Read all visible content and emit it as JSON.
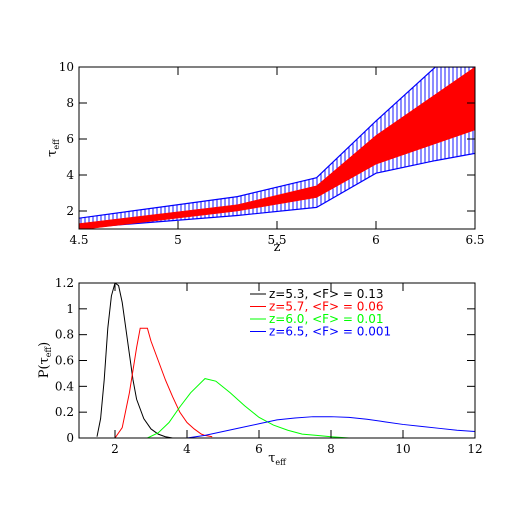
{
  "chart_data": [
    {
      "type": "area",
      "xlabel": "z",
      "ylabel": "τeff",
      "ylabel_main": "τ",
      "ylabel_sub": "eff",
      "xlim": [
        4.5,
        6.5
      ],
      "ylim": [
        1,
        10
      ],
      "xticks": [
        4.5,
        5,
        5.5,
        6,
        6.5
      ],
      "xtick_labels": [
        "4.5",
        "5",
        "5.5",
        "6",
        "6.5"
      ],
      "yticks": [
        2,
        4,
        6,
        8,
        10
      ],
      "ytick_labels": [
        "2",
        "4",
        "6",
        "8",
        "10"
      ],
      "series": [
        {
          "style": "hatched-band",
          "color": "#0000ff",
          "x": [
            4.5,
            5.3,
            5.7,
            6.0,
            6.3,
            6.5
          ],
          "y_low": [
            1.05,
            1.75,
            2.2,
            4.1,
            4.8,
            5.2
          ],
          "y_high": [
            1.6,
            2.8,
            3.85,
            7.0,
            10.0,
            10.0
          ]
        },
        {
          "style": "filled-band",
          "color": "#ff0000",
          "x": [
            4.5,
            5.3,
            5.7,
            6.0,
            6.5
          ],
          "y_low": [
            0.95,
            2.0,
            2.75,
            4.6,
            6.5
          ],
          "y_high": [
            1.3,
            2.35,
            3.4,
            6.2,
            10.0
          ]
        }
      ]
    },
    {
      "type": "line",
      "xlabel": "τeff",
      "xlabel_main": "τ",
      "xlabel_sub": "eff",
      "ylabel": "P(τeff)",
      "ylabel_main": "P(τ",
      "ylabel_sub": "eff",
      "ylabel_close": ")",
      "xlim": [
        1,
        12
      ],
      "ylim": [
        0,
        1.2
      ],
      "xticks": [
        2,
        4,
        6,
        8,
        10,
        12
      ],
      "xtick_labels": [
        "2",
        "4",
        "6",
        "8",
        "10",
        "12"
      ],
      "yticks": [
        0,
        0.2,
        0.4,
        0.6,
        0.8,
        1,
        1.2
      ],
      "ytick_labels": [
        "0",
        "0.2",
        "0.4",
        "0.6",
        "0.8",
        "1",
        "1.2"
      ],
      "legend_position": "top-right",
      "series": [
        {
          "name": "z=5.3, <F> = 0.13",
          "color": "#000000",
          "x": [
            1.5,
            1.6,
            1.7,
            1.8,
            1.9,
            2.0,
            2.1,
            2.2,
            2.3,
            2.4,
            2.5,
            2.6,
            2.8,
            3.0,
            3.2,
            3.4,
            3.6
          ],
          "y": [
            0.01,
            0.15,
            0.45,
            0.85,
            1.1,
            1.2,
            1.18,
            1.05,
            0.85,
            0.65,
            0.45,
            0.3,
            0.15,
            0.07,
            0.03,
            0.01,
            0.0
          ]
        },
        {
          "name": "z=5.7, <F> = 0.06",
          "color": "#ff0000",
          "x": [
            2.0,
            2.2,
            2.4,
            2.6,
            2.7,
            2.9,
            3.0,
            3.2,
            3.4,
            3.6,
            3.8,
            4.0,
            4.2,
            4.4,
            4.5,
            4.7
          ],
          "y": [
            0.0,
            0.08,
            0.35,
            0.7,
            0.85,
            0.85,
            0.75,
            0.6,
            0.45,
            0.32,
            0.2,
            0.12,
            0.07,
            0.03,
            0.02,
            0.01
          ]
        },
        {
          "name": "z=6.0, <F> = 0.01",
          "color": "#00ff00",
          "x": [
            2.9,
            3.2,
            3.5,
            3.8,
            4.1,
            4.5,
            4.8,
            5.2,
            5.6,
            6.0,
            6.4,
            6.8,
            7.2,
            7.6,
            8.0,
            8.5
          ],
          "y": [
            0.0,
            0.04,
            0.12,
            0.24,
            0.35,
            0.46,
            0.44,
            0.35,
            0.25,
            0.16,
            0.1,
            0.06,
            0.03,
            0.02,
            0.01,
            0.0
          ]
        },
        {
          "name": "z=6.5, <F> = 0.001",
          "color": "#0000ff",
          "x": [
            4.0,
            4.5,
            5.0,
            5.5,
            6.0,
            6.5,
            7.0,
            7.5,
            8.0,
            8.5,
            9.0,
            9.5,
            10.0,
            10.5,
            11.0,
            11.5,
            12.0
          ],
          "y": [
            0.0,
            0.02,
            0.05,
            0.08,
            0.11,
            0.14,
            0.155,
            0.165,
            0.165,
            0.16,
            0.145,
            0.125,
            0.105,
            0.09,
            0.075,
            0.06,
            0.05
          ]
        }
      ]
    }
  ]
}
